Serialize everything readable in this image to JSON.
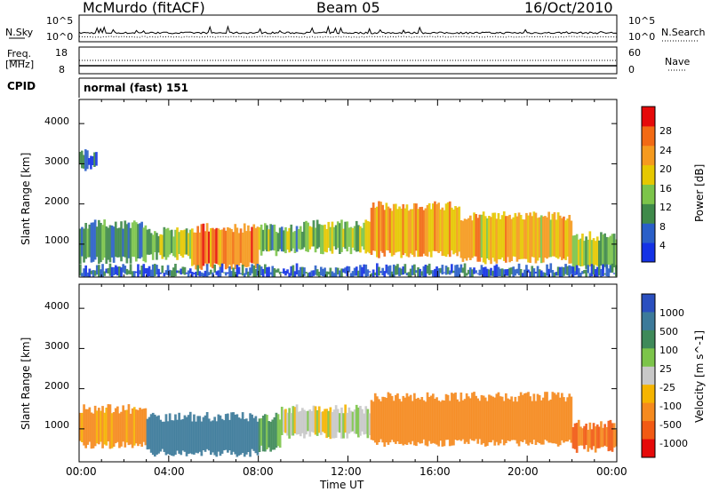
{
  "header": {
    "station": "McMurdo (fitACF)",
    "beam": "Beam 05",
    "date": "16/Oct/2010"
  },
  "status": {
    "nsky_label": "N.Sky",
    "nsearch_label": "N.Search",
    "noise_ticks": [
      "10^5",
      "10^0"
    ],
    "freq_label_line1": "Freq.",
    "freq_label_line2": "[MHz]",
    "freq_ticks": [
      "18",
      "8"
    ],
    "nave_label": "Nave",
    "nave_ticks": [
      "60",
      "0"
    ],
    "cpid_label": "CPID",
    "cpid_value": "normal (fast) 151"
  },
  "chart_data": [
    {
      "type": "heatmap",
      "title": "",
      "xlabel": "",
      "ylabel": "Slant Range [km]",
      "xlim": [
        "00:00",
        "24:00"
      ],
      "ylim": [
        180,
        4600
      ],
      "yticks": [
        "1000",
        "2000",
        "3000",
        "4000"
      ],
      "colorbar": {
        "label": "Power [dB]",
        "ticks": [
          "4",
          "8",
          "12",
          "16",
          "20",
          "24",
          "28"
        ],
        "range": [
          0,
          32
        ],
        "colors": [
          "#1432e6",
          "#2a5fc8",
          "#3f8a4a",
          "#7cc44a",
          "#e6c800",
          "#f59a1e",
          "#f26a14",
          "#e60a0a"
        ]
      },
      "echo_regions": [
        {
          "start_hr": 0.0,
          "end_hr": 3.0,
          "range_lo_km": 600,
          "range_hi_km": 1500,
          "level": 10
        },
        {
          "start_hr": 3.0,
          "end_hr": 5.0,
          "range_lo_km": 700,
          "range_hi_km": 1300,
          "level": 14
        },
        {
          "start_hr": 5.0,
          "end_hr": 8.0,
          "range_lo_km": 450,
          "range_hi_km": 1400,
          "level": 24
        },
        {
          "start_hr": 8.0,
          "end_hr": 10.0,
          "range_lo_km": 800,
          "range_hi_km": 1400,
          "level": 12
        },
        {
          "start_hr": 10.0,
          "end_hr": 13.0,
          "range_lo_km": 850,
          "range_hi_km": 1500,
          "level": 14
        },
        {
          "start_hr": 13.0,
          "end_hr": 17.0,
          "range_lo_km": 750,
          "range_hi_km": 1950,
          "level": 22
        },
        {
          "start_hr": 17.0,
          "end_hr": 22.0,
          "range_lo_km": 600,
          "range_hi_km": 1700,
          "level": 20
        },
        {
          "start_hr": 22.0,
          "end_hr": 24.0,
          "range_lo_km": 400,
          "range_hi_km": 1200,
          "level": 14
        },
        {
          "start_hr": 0.0,
          "end_hr": 0.8,
          "range_lo_km": 2900,
          "range_hi_km": 3250,
          "level": 6
        },
        {
          "start_hr": 0.0,
          "end_hr": 24.0,
          "range_lo_km": 200,
          "range_hi_km": 400,
          "level": 6
        }
      ]
    },
    {
      "type": "heatmap",
      "title": "",
      "xlabel": "Time UT",
      "ylabel": "Slant Range [km]",
      "xlim": [
        "00:00",
        "24:00"
      ],
      "ylim": [
        180,
        4600
      ],
      "xticks": [
        "00:00",
        "04:00",
        "08:00",
        "12:00",
        "16:00",
        "20:00",
        "00:00"
      ],
      "yticks": [
        "1000",
        "2000",
        "3000",
        "4000"
      ],
      "colorbar": {
        "label": "Velocity [m s^-1]",
        "ticks": [
          "1000",
          "500",
          "100",
          "25",
          "-25",
          "-100",
          "-500",
          "-1000"
        ],
        "colors": [
          "#2a4fbf",
          "#3c7a9a",
          "#3f8a5a",
          "#7cc44a",
          "#c8c8c8",
          "#f5b400",
          "#f58a1e",
          "#f25a14",
          "#e60a0a"
        ]
      },
      "echo_regions": [
        {
          "start_hr": 0.0,
          "end_hr": 3.0,
          "range_lo_km": 600,
          "range_hi_km": 1500,
          "velocity": -120
        },
        {
          "start_hr": 3.0,
          "end_hr": 8.0,
          "range_lo_km": 400,
          "range_hi_km": 1300,
          "velocity": 150
        },
        {
          "start_hr": 8.0,
          "end_hr": 9.0,
          "range_lo_km": 500,
          "range_hi_km": 1300,
          "velocity": 60
        },
        {
          "start_hr": 9.0,
          "end_hr": 13.0,
          "range_lo_km": 850,
          "range_hi_km": 1500,
          "velocity": 0
        },
        {
          "start_hr": 13.0,
          "end_hr": 22.0,
          "range_lo_km": 650,
          "range_hi_km": 1800,
          "velocity": -200
        },
        {
          "start_hr": 22.0,
          "end_hr": 24.0,
          "range_lo_km": 500,
          "range_hi_km": 1100,
          "velocity": -300
        }
      ]
    }
  ]
}
